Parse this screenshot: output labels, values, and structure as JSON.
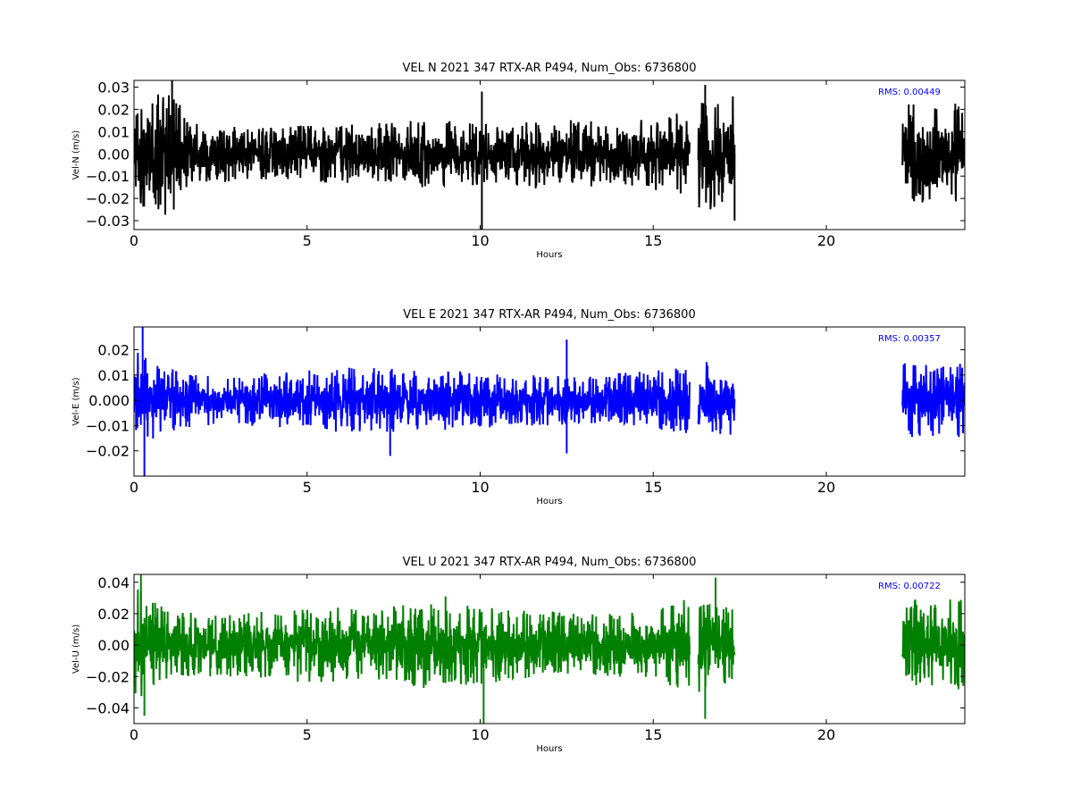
{
  "chart_data": [
    {
      "type": "line",
      "title": "VEL N 2021 347 RTX-AR  P494, Num_Obs: 6736800",
      "xlabel": "Hours",
      "ylabel": "Vel-N (m/s)",
      "xlim": [
        0,
        24
      ],
      "ylim": [
        -0.034,
        0.033
      ],
      "xticks": [
        0,
        5,
        10,
        15,
        20
      ],
      "xtick_labels": [
        "0",
        "5",
        "10",
        "15",
        "20"
      ],
      "yticks": [
        -0.03,
        -0.02,
        -0.01,
        0.0,
        0.01,
        0.02,
        0.03
      ],
      "ytick_labels": [
        "−0.03",
        "−0.02",
        "−0.01",
        "0.00",
        "0.01",
        "0.02",
        "0.03"
      ],
      "rms_label": "RMS:  0.00449",
      "rms_color": "#0000ff",
      "color": "#000000",
      "segments": [
        [
          0.0,
          16.05
        ],
        [
          16.3,
          17.35
        ],
        [
          22.2,
          24.0
        ]
      ],
      "envelope": {
        "hours": [
          0.0,
          0.5,
          1.0,
          1.5,
          2.0,
          3.0,
          4.0,
          5.0,
          6.0,
          7.0,
          8.0,
          9.0,
          10.0,
          11.0,
          12.0,
          13.0,
          14.0,
          15.0,
          16.0,
          16.3,
          17.0,
          17.35,
          22.2,
          23.0,
          24.0
        ],
        "amplitude": [
          0.022,
          0.025,
          0.03,
          0.018,
          0.014,
          0.012,
          0.012,
          0.013,
          0.013,
          0.014,
          0.015,
          0.015,
          0.014,
          0.015,
          0.016,
          0.015,
          0.014,
          0.016,
          0.018,
          0.027,
          0.024,
          0.027,
          0.023,
          0.022,
          0.023
        ]
      },
      "spikes": [
        [
          1.1,
          0.033
        ],
        [
          1.15,
          -0.025
        ],
        [
          10.05,
          -0.034
        ],
        [
          10.05,
          0.028
        ],
        [
          16.5,
          0.031
        ],
        [
          17.35,
          -0.03
        ]
      ]
    },
    {
      "type": "line",
      "title": "VEL E 2021 347 RTX-AR  P494, Num_Obs: 6736800",
      "xlabel": "Hours",
      "ylabel": "Vel-E (m/s)",
      "xlim": [
        0,
        24
      ],
      "ylim": [
        -0.03,
        0.029
      ],
      "xticks": [
        0,
        5,
        10,
        15,
        20
      ],
      "xtick_labels": [
        "0",
        "5",
        "10",
        "15",
        "20"
      ],
      "yticks": [
        -0.02,
        -0.01,
        0.0,
        0.01,
        0.02
      ],
      "ytick_labels": [
        "−0.02",
        "−0.01",
        "0.000",
        "0.01",
        "0.02"
      ],
      "rms_label": "RMS:  0.00357",
      "rms_color": "#0000ff",
      "color": "#0000ff",
      "segments": [
        [
          0.0,
          16.05
        ],
        [
          16.3,
          17.35
        ],
        [
          22.2,
          24.0
        ]
      ],
      "envelope": {
        "hours": [
          0.0,
          0.5,
          1.0,
          2.0,
          3.0,
          4.0,
          5.0,
          6.0,
          7.0,
          8.0,
          9.0,
          10.0,
          11.0,
          12.0,
          13.0,
          14.0,
          15.0,
          16.0,
          16.3,
          17.0,
          17.35,
          22.2,
          23.0,
          24.0
        ],
        "amplitude": [
          0.02,
          0.016,
          0.013,
          0.01,
          0.01,
          0.011,
          0.012,
          0.013,
          0.013,
          0.012,
          0.012,
          0.011,
          0.01,
          0.01,
          0.009,
          0.011,
          0.012,
          0.013,
          0.016,
          0.014,
          0.016,
          0.015,
          0.014,
          0.015
        ]
      },
      "spikes": [
        [
          0.25,
          0.029
        ],
        [
          0.3,
          -0.03
        ],
        [
          7.4,
          -0.022
        ],
        [
          12.5,
          0.024
        ],
        [
          12.5,
          -0.021
        ]
      ]
    },
    {
      "type": "line",
      "title": "VEL U 2021 347 RTX-AR  P494, Num_Obs: 6736800",
      "xlabel": "Hours",
      "ylabel": "Vel-U (m/s)",
      "xlim": [
        0,
        24
      ],
      "ylim": [
        -0.05,
        0.045
      ],
      "xticks": [
        0,
        5,
        10,
        15,
        20
      ],
      "xtick_labels": [
        "0",
        "5",
        "10",
        "15",
        "20"
      ],
      "yticks": [
        -0.04,
        -0.02,
        0.0,
        0.02,
        0.04
      ],
      "ytick_labels": [
        "−0.04",
        "−0.02",
        "0.00",
        "0.02",
        "0.04"
      ],
      "rms_label": "RMS:  0.00722",
      "rms_color": "#0000ff",
      "color": "#008000",
      "segments": [
        [
          0.0,
          16.05
        ],
        [
          16.3,
          17.35
        ],
        [
          22.2,
          24.0
        ]
      ],
      "envelope": {
        "hours": [
          0.0,
          0.5,
          1.0,
          2.0,
          3.0,
          4.0,
          5.0,
          6.0,
          7.0,
          8.0,
          9.0,
          10.0,
          11.0,
          12.0,
          13.0,
          14.0,
          15.0,
          16.0,
          16.3,
          17.0,
          17.35,
          22.2,
          23.0,
          24.0
        ],
        "amplitude": [
          0.04,
          0.03,
          0.022,
          0.02,
          0.02,
          0.022,
          0.024,
          0.024,
          0.022,
          0.028,
          0.026,
          0.025,
          0.022,
          0.022,
          0.02,
          0.02,
          0.022,
          0.03,
          0.03,
          0.026,
          0.022,
          0.03,
          0.028,
          0.03
        ]
      },
      "spikes": [
        [
          0.2,
          0.045
        ],
        [
          0.3,
          -0.045
        ],
        [
          10.1,
          -0.05
        ],
        [
          16.5,
          -0.047
        ],
        [
          16.8,
          0.043
        ],
        [
          9.0,
          0.031
        ]
      ]
    }
  ]
}
